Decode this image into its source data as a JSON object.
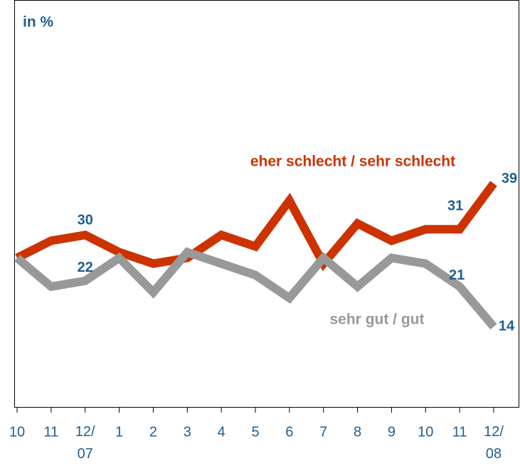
{
  "chart_data": {
    "type": "line",
    "ylabel": "in %",
    "categories": [
      "10",
      "11",
      "12/\n07",
      "1",
      "2",
      "3",
      "4",
      "5",
      "6",
      "7",
      "8",
      "9",
      "10",
      "11",
      "12/\n08"
    ],
    "series": [
      {
        "name": "eher schlecht / sehr schlecht",
        "color": "#cc3300",
        "values": [
          26,
          29,
          30,
          27,
          25,
          26,
          30,
          28,
          36,
          25,
          32,
          29,
          31,
          31,
          39
        ]
      },
      {
        "name": "sehr gut / gut",
        "color": "#999999",
        "values": [
          26,
          21,
          22,
          26,
          20,
          27,
          25,
          23,
          19,
          26,
          21,
          26,
          25,
          21,
          14
        ]
      }
    ],
    "ylim": [
      0,
      71
    ]
  }
}
